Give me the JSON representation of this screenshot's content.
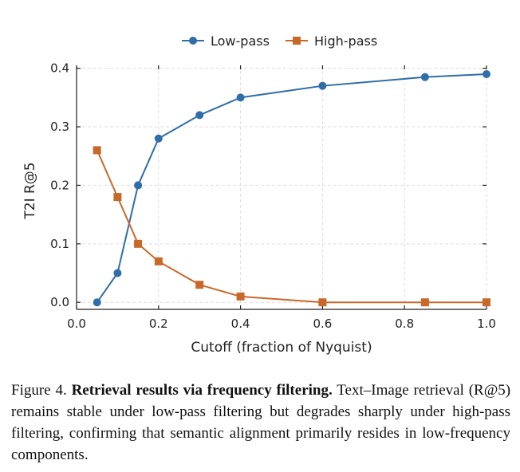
{
  "chart_data": {
    "type": "line",
    "title": "",
    "xlabel": "Cutoff (fraction of Nyquist)",
    "ylabel": "T2I R@5",
    "xlim": [
      0.0,
      1.0
    ],
    "ylim": [
      -0.012,
      0.405
    ],
    "xticks": [
      0.0,
      0.2,
      0.4,
      0.6,
      0.8,
      1.0
    ],
    "xtick_labels": [
      "0.0",
      "0.2",
      "0.4",
      "0.6",
      "0.8",
      "1.0"
    ],
    "yticks": [
      0.0,
      0.1,
      0.2,
      0.3,
      0.4
    ],
    "ytick_labels": [
      "0.0",
      "0.1",
      "0.2",
      "0.3",
      "0.4"
    ],
    "grid": true,
    "legend_position": "top-center",
    "series": [
      {
        "name": "Low-pass",
        "color": "#2f6ea8",
        "marker": "circle",
        "x": [
          0.05,
          0.1,
          0.15,
          0.2,
          0.3,
          0.4,
          0.6,
          0.85,
          1.0
        ],
        "y": [
          0.0,
          0.05,
          0.2,
          0.28,
          0.32,
          0.35,
          0.37,
          0.385,
          0.39
        ]
      },
      {
        "name": "High-pass",
        "color": "#c8692a",
        "marker": "square",
        "x": [
          0.05,
          0.1,
          0.15,
          0.2,
          0.3,
          0.4,
          0.6,
          0.85,
          1.0
        ],
        "y": [
          0.26,
          0.18,
          0.1,
          0.07,
          0.03,
          0.01,
          0.0,
          0.0,
          0.0
        ]
      }
    ]
  },
  "caption": {
    "figure_label": "Figure 4.",
    "bold_title": "Retrieval results via frequency filtering.",
    "body": "Text–Image retrieval (R@5) remains stable under low-pass filtering but degrades sharply under high-pass filtering, confirming that semantic alignment primarily resides in low-frequency components."
  }
}
